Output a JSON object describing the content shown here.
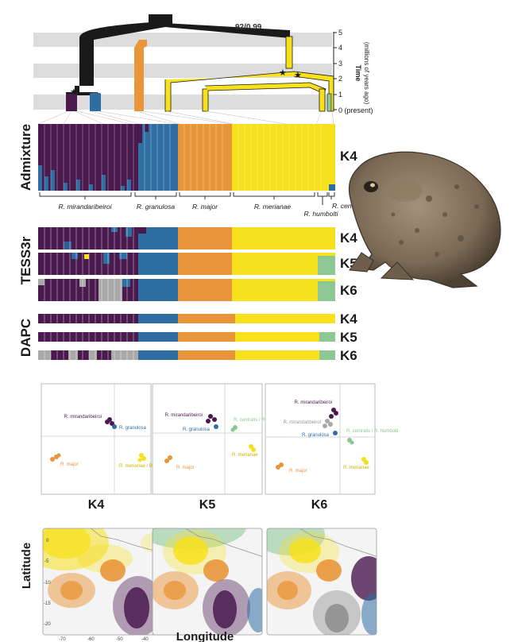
{
  "colors": {
    "mirandaribeiroi": "#4a1a4f",
    "granulosa": "#2f6ea3",
    "major": "#e9963b",
    "merianae": "#f7e01c",
    "humbolti": "#8dc794",
    "gray": "#a9a9a9",
    "tree_black": "#1a1a1a",
    "band": "#dddddd"
  },
  "tree": {
    "support_label": "92/0.99",
    "time_axis_label_line1": "Time",
    "time_axis_label_line2": "(millions of years ago)",
    "time_ticks": [
      "5",
      "4",
      "3",
      "2",
      "1",
      "0 (present)"
    ],
    "star_symbol": "★"
  },
  "panels": {
    "admixture_label": "Admixture",
    "tess_label": "TESS3r",
    "dapc_label": "DAPC"
  },
  "k_labels": {
    "admixture": "K4",
    "tess": [
      "K4",
      "K5",
      "K6"
    ],
    "dapc": [
      "K4",
      "K5",
      "K6"
    ],
    "scatter": [
      "K4",
      "K5",
      "K6"
    ]
  },
  "species": {
    "mirandaribeiroi": "R. mirandaribeiroi",
    "granulosa": "R. granulosa",
    "major": "R. major",
    "merianae": "R. merianae",
    "humbolti": "R. humbolti",
    "centralis": "R. centralis"
  },
  "scatter_labels": {
    "k4": {
      "mir": "R. mirandaribeiroi",
      "gran": "R. granulosa",
      "major": "R. major",
      "mer": "R. merianae / R. centralis / R. humbolti"
    },
    "k5": {
      "mir": "R. mirandaribeiroi",
      "gran": "R. granulosa",
      "cen": "R. centralis / R. humbolti",
      "major": "R. major",
      "mer": "R. merianae"
    },
    "k6": {
      "mir": "R. mirandaribeiroi",
      "mir2": "R. mirandaribeiroi",
      "gran": "R. granulosa",
      "cen": "R. centralis / R. humbolti",
      "major": "R. major",
      "mer": "R. merianae"
    }
  },
  "maps": {
    "ylabel": "Latitude",
    "xlabel": "Longitude",
    "xticks": [
      "-70",
      "-60",
      "-50",
      "-40"
    ],
    "yticks": [
      "0",
      "-5",
      "-10",
      "-15",
      "-20"
    ]
  }
}
